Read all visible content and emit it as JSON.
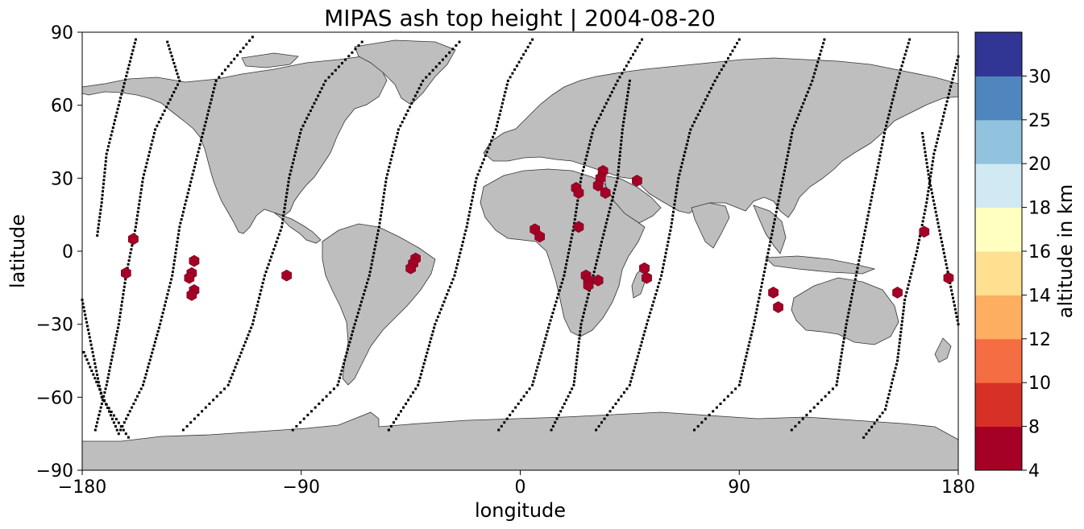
{
  "chart_data": {
    "type": "scatter",
    "title": "MIPAS ash top height | 2004-08-20",
    "xlabel": "longitude",
    "ylabel": "latitude",
    "xlim": [
      -180,
      180
    ],
    "ylim": [
      -90,
      90
    ],
    "x_ticks": [
      "−180",
      "−90",
      "0",
      "90",
      "180"
    ],
    "y_ticks": [
      "90",
      "60",
      "30",
      "0",
      "−30",
      "−60",
      "−90"
    ],
    "basemap": "world coastlines, land filled grey",
    "colorbar": {
      "label": "altitude in km",
      "boundaries": [
        4,
        8,
        10,
        12,
        14,
        16,
        18,
        20,
        25,
        30
      ],
      "tick_labels": [
        "4",
        "8",
        "10",
        "12",
        "14",
        "16",
        "18",
        "20",
        "25",
        "30"
      ],
      "colors": [
        "#a50026",
        "#d73027",
        "#f46d43",
        "#fdae61",
        "#fee090",
        "#ffffbf",
        "#d1e9f2",
        "#91c2de",
        "#4f86bd",
        "#313695"
      ]
    },
    "colors": {
      "land": "#bebebe",
      "coast": "#333333",
      "track": "#000000",
      "ash": "#a50026"
    },
    "tracks": [
      [
        [
          -158,
          87
        ],
        [
          -165,
          60
        ],
        [
          -170,
          40
        ],
        [
          -172,
          20
        ],
        [
          -174,
          5
        ]
      ],
      [
        [
          -145,
          86
        ],
        [
          -140,
          70
        ],
        [
          -150,
          50
        ],
        [
          -155,
          30
        ],
        [
          -158,
          10
        ],
        [
          -162,
          -10
        ],
        [
          -165,
          -30
        ],
        [
          -170,
          -55
        ],
        [
          -175,
          -75
        ]
      ],
      [
        [
          -110,
          88
        ],
        [
          -125,
          70
        ],
        [
          -130,
          50
        ],
        [
          -135,
          30
        ],
        [
          -140,
          10
        ],
        [
          -143,
          -10
        ],
        [
          -148,
          -30
        ],
        [
          -155,
          -55
        ],
        [
          -165,
          -75
        ],
        [
          -180,
          -40
        ]
      ],
      [
        [
          -65,
          86
        ],
        [
          -80,
          70
        ],
        [
          -90,
          50
        ],
        [
          -95,
          30
        ],
        [
          -98,
          10
        ],
        [
          -105,
          -10
        ],
        [
          -110,
          -30
        ],
        [
          -120,
          -55
        ],
        [
          -140,
          -75
        ]
      ],
      [
        [
          -25,
          86
        ],
        [
          -40,
          70
        ],
        [
          -50,
          50
        ],
        [
          -55,
          30
        ],
        [
          -58,
          10
        ],
        [
          -62,
          -10
        ],
        [
          -68,
          -30
        ],
        [
          -75,
          -55
        ],
        [
          -95,
          -75
        ]
      ],
      [
        [
          5,
          87
        ],
        [
          -5,
          70
        ],
        [
          -10,
          50
        ],
        [
          -18,
          30
        ],
        [
          -22,
          10
        ],
        [
          -27,
          -10
        ],
        [
          -35,
          -30
        ],
        [
          -42,
          -55
        ],
        [
          -55,
          -75
        ]
      ],
      [
        [
          50,
          87
        ],
        [
          40,
          70
        ],
        [
          30,
          50
        ],
        [
          25,
          30
        ],
        [
          22,
          10
        ],
        [
          18,
          -10
        ],
        [
          12,
          -30
        ],
        [
          5,
          -55
        ],
        [
          -10,
          -75
        ]
      ],
      [
        [
          90,
          87
        ],
        [
          80,
          70
        ],
        [
          70,
          50
        ],
        [
          65,
          30
        ],
        [
          62,
          10
        ],
        [
          58,
          -10
        ],
        [
          52,
          -30
        ],
        [
          45,
          -55
        ],
        [
          30,
          -75
        ]
      ],
      [
        [
          125,
          87
        ],
        [
          120,
          70
        ],
        [
          112,
          50
        ],
        [
          108,
          30
        ],
        [
          104,
          10
        ],
        [
          100,
          -10
        ],
        [
          96,
          -30
        ],
        [
          90,
          -55
        ],
        [
          70,
          -75
        ]
      ],
      [
        [
          160,
          87
        ],
        [
          155,
          70
        ],
        [
          150,
          50
        ],
        [
          146,
          30
        ],
        [
          142,
          10
        ],
        [
          138,
          -10
        ],
        [
          134,
          -30
        ],
        [
          130,
          -55
        ],
        [
          110,
          -75
        ]
      ],
      [
        [
          180,
          80
        ],
        [
          175,
          60
        ],
        [
          170,
          40
        ],
        [
          167,
          20
        ],
        [
          163,
          0
        ],
        [
          158,
          -20
        ],
        [
          155,
          -45
        ],
        [
          150,
          -65
        ],
        [
          140,
          -78
        ]
      ],
      [
        [
          45,
          70
        ],
        [
          42,
          50
        ],
        [
          40,
          30
        ],
        [
          35,
          10
        ],
        [
          30,
          -10
        ],
        [
          25,
          -30
        ],
        [
          22,
          -55
        ],
        [
          12,
          -75
        ]
      ],
      [
        [
          180,
          -30
        ],
        [
          176,
          -10
        ],
        [
          172,
          10
        ],
        [
          168,
          30
        ],
        [
          165,
          50
        ]
      ],
      [
        [
          -180,
          -20
        ],
        [
          -176,
          -40
        ],
        [
          -172,
          -60
        ],
        [
          -160,
          -78
        ]
      ]
    ],
    "ash_points": [
      {
        "lon": -159,
        "lat": 5
      },
      {
        "lon": -162,
        "lat": -9
      },
      {
        "lon": -134,
        "lat": -4
      },
      {
        "lon": -135,
        "lat": -9
      },
      {
        "lon": -136,
        "lat": -11
      },
      {
        "lon": -134,
        "lat": -16
      },
      {
        "lon": -135,
        "lat": -18
      },
      {
        "lon": -96,
        "lat": -10
      },
      {
        "lon": -43,
        "lat": -3
      },
      {
        "lon": -44,
        "lat": -5
      },
      {
        "lon": -45,
        "lat": -7
      },
      {
        "lon": 6,
        "lat": 9
      },
      {
        "lon": 8,
        "lat": 6
      },
      {
        "lon": 23,
        "lat": 26
      },
      {
        "lon": 24,
        "lat": 24
      },
      {
        "lon": 24,
        "lat": 10
      },
      {
        "lon": 34,
        "lat": 33
      },
      {
        "lon": 33,
        "lat": 30
      },
      {
        "lon": 32,
        "lat": 27
      },
      {
        "lon": 35,
        "lat": 24
      },
      {
        "lon": 48,
        "lat": 29
      },
      {
        "lon": 27,
        "lat": -10
      },
      {
        "lon": 28,
        "lat": -12
      },
      {
        "lon": 28,
        "lat": -14
      },
      {
        "lon": 32,
        "lat": -12
      },
      {
        "lon": 51,
        "lat": -7
      },
      {
        "lon": 52,
        "lat": -11
      },
      {
        "lon": 104,
        "lat": -17
      },
      {
        "lon": 106,
        "lat": -23
      },
      {
        "lon": 155,
        "lat": -17
      },
      {
        "lon": 166,
        "lat": 8
      },
      {
        "lon": 176,
        "lat": -11
      }
    ]
  }
}
